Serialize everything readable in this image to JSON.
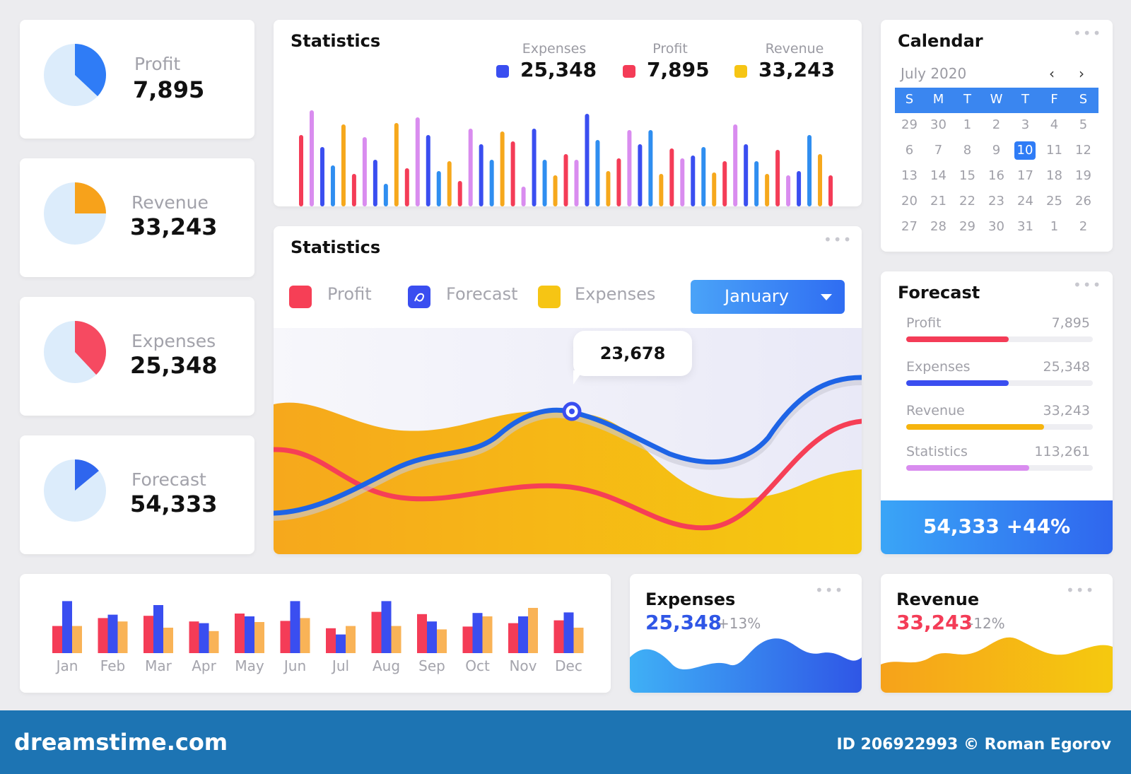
{
  "side_cards": [
    {
      "label": "Profit",
      "value": "7,895",
      "color": "#2f7cf6",
      "fraction": 0.37
    },
    {
      "label": "Revenue",
      "value": "33,243",
      "color": "#f7a21b",
      "fraction": 0.25
    },
    {
      "label": "Expenses",
      "value": "25,348",
      "color": "#f64a61",
      "fraction": 0.38
    },
    {
      "label": "Forecast",
      "value": "54,333",
      "color": "#2f66ee",
      "fraction": 0.14
    }
  ],
  "stats_top": {
    "title": "Statistics",
    "legend": [
      {
        "label": "Expenses",
        "value": "25,348",
        "color": "#3a4ef0"
      },
      {
        "label": "Profit",
        "value": "7,895",
        "color": "#f43c57"
      },
      {
        "label": "Revenue",
        "value": "33,243",
        "color": "#f6c514"
      }
    ]
  },
  "stats_main": {
    "title": "Statistics",
    "legend": [
      {
        "label": "Profit",
        "color": "#f63f56",
        "icon": "square-icon"
      },
      {
        "label": "Forecast",
        "color": "#3a4ef0",
        "icon": "forecast-icon"
      },
      {
        "label": "Expenses",
        "color": "#f6c514",
        "icon": "square-icon"
      }
    ],
    "dropdown": "January",
    "tooltip": "23,678"
  },
  "calendar": {
    "title": "Calendar",
    "month": "July 2020",
    "weekdays": [
      "S",
      "M",
      "T",
      "W",
      "T",
      "F",
      "S"
    ],
    "days": [
      "29",
      "30",
      "1",
      "2",
      "3",
      "4",
      "5",
      "6",
      "7",
      "8",
      "9",
      "10",
      "11",
      "12",
      "13",
      "14",
      "15",
      "16",
      "17",
      "18",
      "19",
      "20",
      "21",
      "22",
      "23",
      "24",
      "25",
      "26",
      "27",
      "28",
      "29",
      "30",
      "31",
      "1",
      "2"
    ],
    "selected": "10"
  },
  "forecast": {
    "title": "Forecast",
    "items": [
      {
        "label": "Profit",
        "value": "7,895",
        "color": "#f43c57",
        "fraction": 0.55
      },
      {
        "label": "Expenses",
        "value": "25,348",
        "color": "#3a4ef0",
        "fraction": 0.55
      },
      {
        "label": "Revenue",
        "value": "33,243",
        "color": "#f6b40e",
        "fraction": 0.74
      },
      {
        "label": "Statistics",
        "value": "113,261",
        "color": "#d98cef",
        "fraction": 0.66
      }
    ],
    "total": "54,333 +44%"
  },
  "monthly": {
    "months": [
      "Jan",
      "Feb",
      "Mar",
      "Apr",
      "May",
      "Jun",
      "Jul",
      "Aug",
      "Sep",
      "Oct",
      "Nov",
      "Dec"
    ]
  },
  "expenses_card": {
    "title": "Expenses",
    "value": "25,348",
    "change": "+13%"
  },
  "revenue_card": {
    "title": "Revenue",
    "value": "33,243",
    "change": "-12%"
  },
  "footer": {
    "brand": "dreamstime.com",
    "credit": "ID 206922993 © Roman Egorov"
  },
  "colors": {
    "blue": "#3a4ef0",
    "red": "#f43c57",
    "yellow": "#f6c514",
    "orange": "#f7a21b",
    "violet": "#d98cef",
    "accent": "#2f7cf6"
  },
  "chart_data": [
    {
      "type": "bar",
      "series": [
        {
          "color": "#f43c57",
          "values": [
            0.48,
            0.62,
            0.66,
            0.56,
            0.7,
            0.57,
            0.44,
            0.73,
            0.69,
            0.47,
            0.53,
            0.58
          ]
        },
        {
          "color": "#3a4ef0",
          "values": [
            0.92,
            0.68,
            0.85,
            0.53,
            0.65,
            0.92,
            0.33,
            0.92,
            0.56,
            0.71,
            0.65,
            0.72
          ]
        },
        {
          "color": "#f9b357",
          "values": [
            0.48,
            0.56,
            0.45,
            0.39,
            0.55,
            0.62,
            0.48,
            0.48,
            0.42,
            0.65,
            0.8,
            0.45
          ]
        }
      ]
    }
  ]
}
